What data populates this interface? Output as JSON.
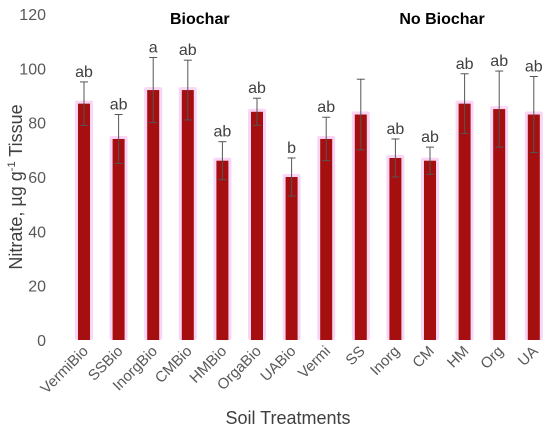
{
  "chart_data": {
    "type": "bar",
    "xlabel": "Soil Treatments",
    "ylabel_parts": [
      "Nitrate, µg g",
      "-1",
      " Tissue"
    ],
    "ylim": [
      0,
      120
    ],
    "yticks": [
      0,
      20,
      40,
      60,
      80,
      100,
      120
    ],
    "grid": false,
    "group_labels": [
      {
        "text": "Biochar",
        "span": [
          "VermiBio",
          "UABio"
        ]
      },
      {
        "text": "No Biochar",
        "span": [
          "Vermi",
          "UA"
        ]
      }
    ],
    "categories": [
      "VermiBio",
      "SSBio",
      "InorgBio",
      "CMBio",
      "HMBio",
      "OrgaBio",
      "UABio",
      "Vermi",
      "SS",
      "Inorg",
      "CM",
      "HM",
      "Org",
      "UA"
    ],
    "values": [
      87,
      74,
      92,
      92,
      66,
      84,
      60,
      74,
      83,
      67,
      66,
      87,
      85,
      83
    ],
    "errors": [
      8,
      9,
      12,
      11,
      7,
      5,
      7,
      8,
      13,
      7,
      5,
      11,
      14,
      14
    ],
    "data_labels": [
      "ab",
      "ab",
      "a",
      "ab",
      "ab",
      "ab",
      "b",
      "ab",
      "",
      "ab",
      "ab",
      "ab",
      "ab",
      "ab"
    ],
    "bar_color": "#a50f0f",
    "glow_color": "#f4b4ee"
  }
}
